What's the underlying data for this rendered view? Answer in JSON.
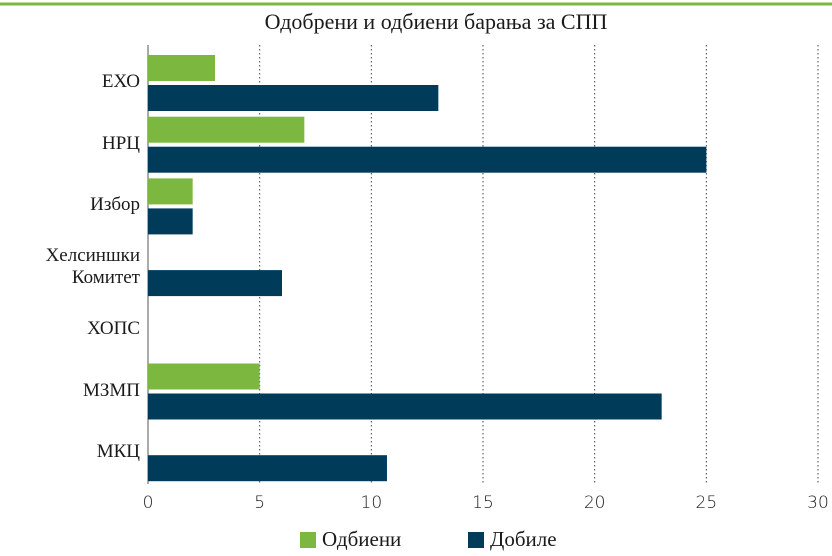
{
  "chart_data": {
    "type": "barh",
    "title": "Одобрени и одбиени барања за СПП",
    "categories": [
      "ЕХО",
      "НРЦ",
      "Избор",
      "Хелсиншки Комитет",
      "ХОПС",
      "МЗМП",
      "МКЦ"
    ],
    "series": [
      {
        "name": "Одбиени",
        "color": "#7cb83f",
        "values": [
          3,
          7,
          2,
          0,
          0,
          5,
          0
        ]
      },
      {
        "name": "Добиле",
        "color": "#003c5a",
        "values": [
          13,
          25,
          2,
          6,
          0,
          23,
          10.7
        ]
      }
    ],
    "xlim": [
      0,
      30
    ],
    "xticks": [
      0,
      5,
      10,
      15,
      20,
      25,
      30
    ],
    "grid": true,
    "legend": "bottom"
  }
}
